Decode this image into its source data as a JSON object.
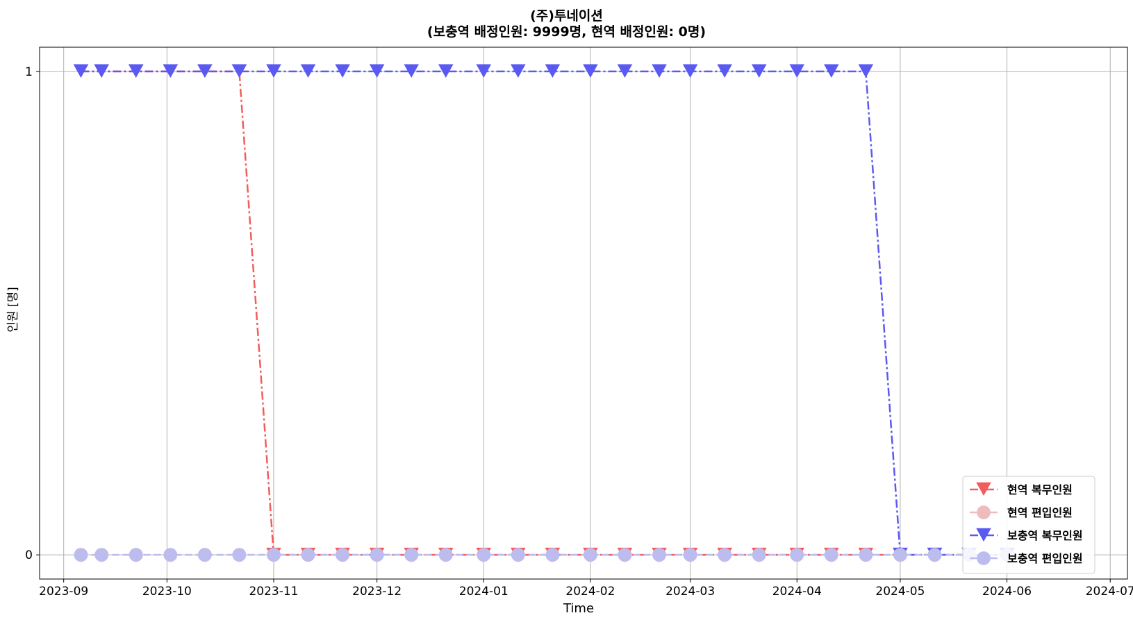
{
  "chart_data": {
    "type": "line",
    "title": "(주)투네이션",
    "subtitle": "(보충역 배정인원: 9999명, 현역 배정인원: 0명)",
    "xlabel": "Time",
    "ylabel": "인원 [명]",
    "x_ticks": [
      "2023-09",
      "2023-10",
      "2023-11",
      "2023-12",
      "2024-01",
      "2024-02",
      "2024-03",
      "2024-04",
      "2024-05",
      "2024-06",
      "2024-07"
    ],
    "y_ticks": [
      "0",
      "1"
    ],
    "xlim": [
      "2023-08-25",
      "2024-07-06"
    ],
    "ylim": [
      -0.05,
      1.05
    ],
    "grid": true,
    "legend_position": "lower-right",
    "x": [
      "2023-09-06",
      "2023-09-12",
      "2023-09-22",
      "2023-10-02",
      "2023-10-12",
      "2023-10-22",
      "2023-11-01",
      "2023-11-11",
      "2023-11-21",
      "2023-12-01",
      "2023-12-11",
      "2023-12-21",
      "2024-01-01",
      "2024-01-11",
      "2024-01-21",
      "2024-02-01",
      "2024-02-11",
      "2024-02-21",
      "2024-03-01",
      "2024-03-11",
      "2024-03-21",
      "2024-04-01",
      "2024-04-11",
      "2024-04-21",
      "2024-05-01",
      "2024-05-11",
      "2024-05-21",
      "2024-06-01"
    ],
    "series": [
      {
        "name": "현역 복무인원",
        "color": "#f25c5c",
        "marker": "triangle-down",
        "linestyle": "dashdot",
        "values": [
          1,
          1,
          1,
          1,
          1,
          1,
          0,
          0,
          0,
          0,
          0,
          0,
          0,
          0,
          0,
          0,
          0,
          0,
          0,
          0,
          0,
          0,
          0,
          0,
          0,
          0,
          0,
          0
        ]
      },
      {
        "name": "현역 편입인원",
        "color": "#eebcbc",
        "marker": "circle",
        "linestyle": "dashed",
        "values": [
          0,
          0,
          0,
          0,
          0,
          0,
          0,
          0,
          0,
          0,
          0,
          0,
          0,
          0,
          0,
          0,
          0,
          0,
          0,
          0,
          0,
          0,
          0,
          0,
          0,
          0,
          0,
          0
        ]
      },
      {
        "name": "보충역 복무인원",
        "color": "#5a5af2",
        "marker": "triangle-down",
        "linestyle": "dashdot",
        "values": [
          1,
          1,
          1,
          1,
          1,
          1,
          1,
          1,
          1,
          1,
          1,
          1,
          1,
          1,
          1,
          1,
          1,
          1,
          1,
          1,
          1,
          1,
          1,
          1,
          0,
          0,
          0,
          0
        ]
      },
      {
        "name": "보충역 편입인원",
        "color": "#bcbcee",
        "marker": "circle",
        "linestyle": "dashed",
        "values": [
          0,
          0,
          0,
          0,
          0,
          0,
          0,
          0,
          0,
          0,
          0,
          0,
          0,
          0,
          0,
          0,
          0,
          0,
          0,
          0,
          0,
          0,
          0,
          0,
          0,
          0,
          0,
          0
        ]
      }
    ]
  }
}
